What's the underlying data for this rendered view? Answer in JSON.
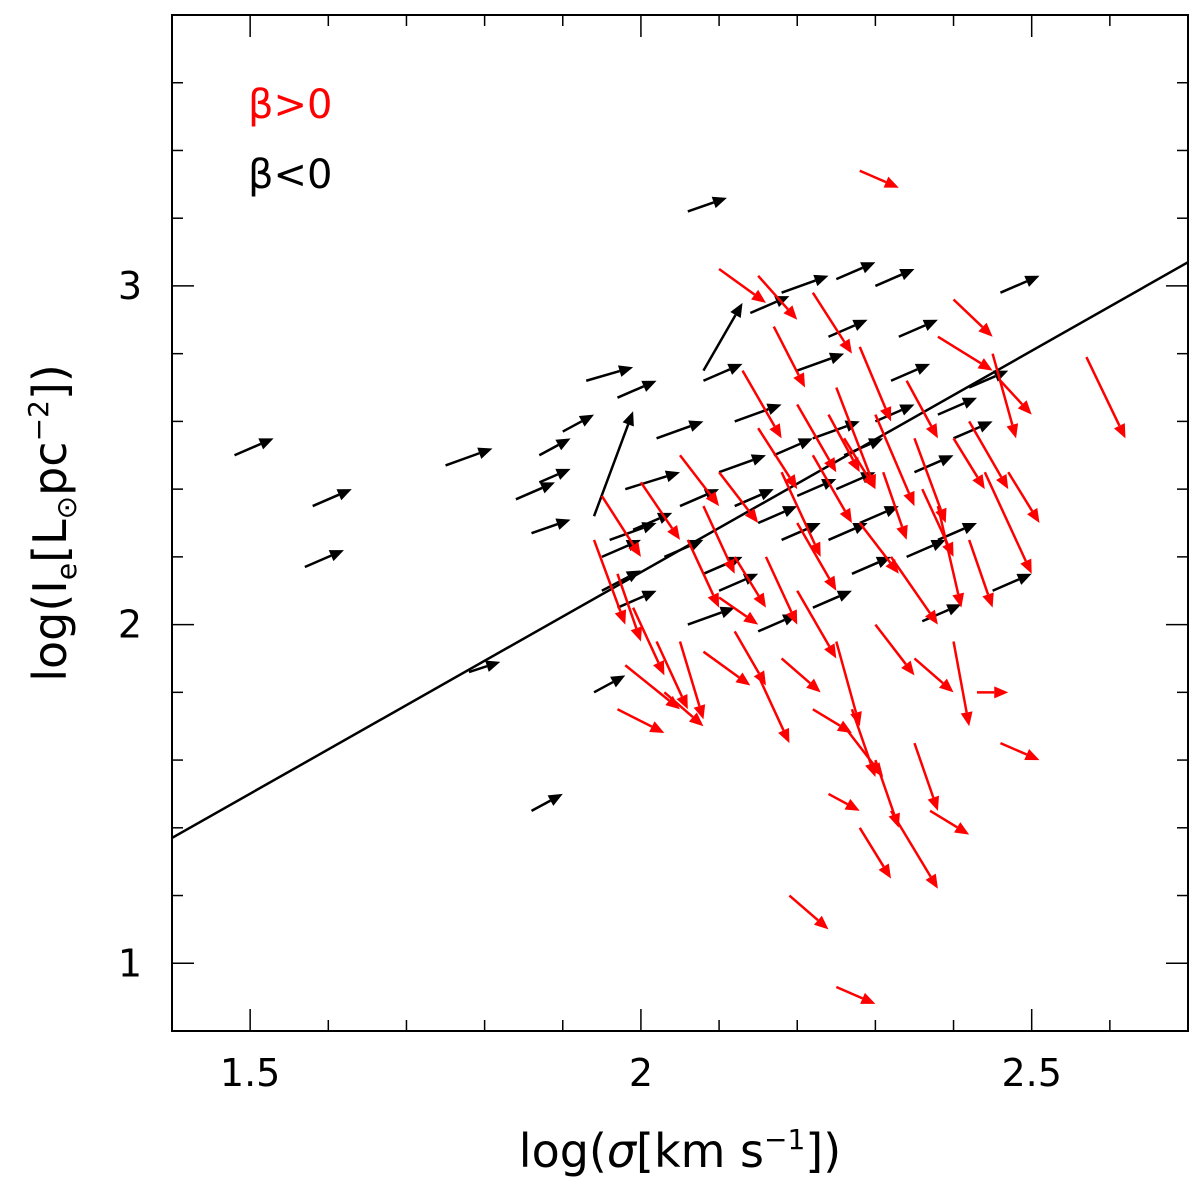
{
  "chart_data": {
    "type": "scatter",
    "title": "",
    "xlabel": {
      "pre": "log(",
      "sigma": "σ",
      "mid": "[km s",
      "sup": "−1",
      "post": "])"
    },
    "ylabel": {
      "pre": "log(I",
      "sub_e": "e",
      "mid1": "[L",
      "sun": "⊙",
      "mid2": "pc",
      "sup": "−2",
      "post": "])"
    },
    "xlim": [
      1.4,
      2.7
    ],
    "ylim": [
      0.8,
      3.8
    ],
    "x_ticks": [
      1.5,
      2.0,
      2.5
    ],
    "x_tick_labels": [
      "1.5",
      "2",
      "2.5"
    ],
    "y_ticks": [
      1,
      2,
      3
    ],
    "y_tick_labels": [
      "1",
      "2",
      "3"
    ],
    "x_minor_step": 0.1,
    "y_minor_step": 0.2,
    "legend": [
      {
        "label": "β>0",
        "color": "#ff0000"
      },
      {
        "label": "β<0",
        "color": "#000000"
      }
    ],
    "fit_line": {
      "x": [
        1.4,
        2.7
      ],
      "y": [
        1.37,
        3.07
      ]
    },
    "series": [
      {
        "name": "β<0",
        "color": "#000000",
        "arrows": [
          [
            1.48,
            2.5,
            1.53,
            2.55
          ],
          [
            1.57,
            2.17,
            1.62,
            2.22
          ],
          [
            1.58,
            2.35,
            1.63,
            2.4
          ],
          [
            1.75,
            2.47,
            1.81,
            2.52
          ],
          [
            1.78,
            1.86,
            1.82,
            1.89
          ],
          [
            1.87,
            2.5,
            1.91,
            2.55
          ],
          [
            1.87,
            2.42,
            1.91,
            2.46
          ],
          [
            1.86,
            2.27,
            1.91,
            2.31
          ],
          [
            1.84,
            2.37,
            1.89,
            2.42
          ],
          [
            1.86,
            1.45,
            1.9,
            1.5
          ],
          [
            1.9,
            2.57,
            1.94,
            2.62
          ],
          [
            1.93,
            2.72,
            1.99,
            2.76
          ],
          [
            1.97,
            2.67,
            2.02,
            2.72
          ],
          [
            1.95,
            2.1,
            2.0,
            2.16
          ],
          [
            1.94,
            1.8,
            1.98,
            1.85
          ],
          [
            1.97,
            2.05,
            2.02,
            2.1
          ],
          [
            1.96,
            2.25,
            2.02,
            2.3
          ],
          [
            1.95,
            2.2,
            2.0,
            2.25
          ],
          [
            1.98,
            2.4,
            2.05,
            2.45
          ],
          [
            2.02,
            2.55,
            2.08,
            2.6
          ],
          [
            2.05,
            2.35,
            2.1,
            2.4
          ],
          [
            2.08,
            2.15,
            2.13,
            2.2
          ],
          [
            2.06,
            2.0,
            2.12,
            2.05
          ],
          [
            2.1,
            2.45,
            2.16,
            2.5
          ],
          [
            2.15,
            2.3,
            2.2,
            2.35
          ],
          [
            2.12,
            2.6,
            2.18,
            2.65
          ],
          [
            2.14,
            2.92,
            2.19,
            2.97
          ],
          [
            2.18,
            2.98,
            2.24,
            3.03
          ],
          [
            2.2,
            2.75,
            2.26,
            2.8
          ],
          [
            2.22,
            2.55,
            2.28,
            2.6
          ],
          [
            2.18,
            2.25,
            2.23,
            2.3
          ],
          [
            2.25,
            2.4,
            2.3,
            2.45
          ],
          [
            2.27,
            2.15,
            2.32,
            2.2
          ],
          [
            2.22,
            2.05,
            2.27,
            2.1
          ],
          [
            2.3,
            2.6,
            2.35,
            2.65
          ],
          [
            2.33,
            2.85,
            2.38,
            2.9
          ],
          [
            2.35,
            2.45,
            2.4,
            2.5
          ],
          [
            2.38,
            2.25,
            2.43,
            2.3
          ],
          [
            2.4,
            2.55,
            2.45,
            2.6
          ],
          [
            2.42,
            2.7,
            2.47,
            2.75
          ],
          [
            2.45,
            2.1,
            2.5,
            2.15
          ],
          [
            2.46,
            2.98,
            2.51,
            3.03
          ],
          [
            2.3,
            3.0,
            2.35,
            3.05
          ],
          [
            2.25,
            3.02,
            2.3,
            3.07
          ],
          [
            2.06,
            3.22,
            2.11,
            3.26
          ],
          [
            2.36,
            2.01,
            2.41,
            2.06
          ],
          [
            2.15,
            1.98,
            2.2,
            2.03
          ],
          [
            2.28,
            2.3,
            2.33,
            2.35
          ],
          [
            2.12,
            2.35,
            2.17,
            2.4
          ],
          [
            2.32,
            2.72,
            2.37,
            2.77
          ],
          [
            2.08,
            2.72,
            2.13,
            2.77
          ],
          [
            2.17,
            2.5,
            2.22,
            2.55
          ],
          [
            1.99,
            2.28,
            2.04,
            2.33
          ],
          [
            2.03,
            2.2,
            2.08,
            2.25
          ],
          [
            2.26,
            2.5,
            2.31,
            2.55
          ],
          [
            2.38,
            2.62,
            2.43,
            2.67
          ],
          [
            2.1,
            2.1,
            2.15,
            2.15
          ],
          [
            2.24,
            2.25,
            2.29,
            2.3
          ],
          [
            2.2,
            2.38,
            2.25,
            2.43
          ],
          [
            2.34,
            2.2,
            2.39,
            2.25
          ],
          [
            1.94,
            2.32,
            1.99,
            2.63
          ],
          [
            2.08,
            2.75,
            2.13,
            2.95
          ],
          [
            2.24,
            2.85,
            2.29,
            2.9
          ]
        ]
      },
      {
        "name": "β>0",
        "color": "#ff0000",
        "arrows": [
          [
            2.28,
            3.34,
            2.33,
            3.29
          ],
          [
            2.1,
            3.05,
            2.16,
            2.95
          ],
          [
            2.15,
            3.03,
            2.2,
            2.9
          ],
          [
            2.22,
            2.98,
            2.27,
            2.8
          ],
          [
            2.4,
            2.96,
            2.45,
            2.85
          ],
          [
            2.38,
            2.85,
            2.45,
            2.75
          ],
          [
            2.46,
            2.72,
            2.5,
            2.62
          ],
          [
            2.42,
            2.6,
            2.47,
            2.4
          ],
          [
            2.45,
            2.8,
            2.48,
            2.55
          ],
          [
            2.57,
            2.79,
            2.62,
            2.55
          ],
          [
            2.44,
            2.45,
            2.5,
            2.15
          ],
          [
            2.38,
            2.35,
            2.41,
            2.05
          ],
          [
            2.35,
            2.55,
            2.39,
            2.3
          ],
          [
            2.3,
            2.62,
            2.35,
            2.35
          ],
          [
            2.25,
            2.7,
            2.3,
            2.4
          ],
          [
            2.2,
            2.65,
            2.25,
            2.45
          ],
          [
            2.15,
            2.58,
            2.2,
            2.4
          ],
          [
            2.1,
            2.45,
            2.15,
            2.3
          ],
          [
            2.05,
            2.5,
            2.1,
            2.35
          ],
          [
            2.0,
            2.42,
            2.05,
            2.25
          ],
          [
            1.95,
            2.38,
            2.0,
            2.2
          ],
          [
            1.94,
            2.25,
            1.98,
            2.0
          ],
          [
            1.97,
            2.15,
            2.0,
            1.95
          ],
          [
            1.99,
            2.05,
            2.03,
            1.85
          ],
          [
            2.02,
            1.95,
            2.06,
            1.75
          ],
          [
            1.98,
            1.88,
            2.05,
            1.75
          ],
          [
            1.97,
            1.75,
            2.03,
            1.68
          ],
          [
            2.03,
            1.8,
            2.08,
            1.7
          ],
          [
            2.05,
            1.95,
            2.08,
            1.72
          ],
          [
            2.08,
            1.92,
            2.14,
            1.82
          ],
          [
            2.1,
            2.08,
            2.15,
            2.0
          ],
          [
            2.12,
            1.98,
            2.16,
            1.82
          ],
          [
            2.15,
            1.85,
            2.19,
            1.65
          ],
          [
            2.18,
            1.9,
            2.23,
            1.8
          ],
          [
            2.22,
            1.75,
            2.27,
            1.68
          ],
          [
            2.2,
            2.1,
            2.25,
            1.9
          ],
          [
            2.25,
            1.95,
            2.28,
            1.7
          ],
          [
            2.27,
            1.75,
            2.3,
            1.55
          ],
          [
            2.24,
            1.5,
            2.28,
            1.45
          ],
          [
            2.26,
            1.7,
            2.31,
            1.55
          ],
          [
            2.3,
            1.6,
            2.33,
            1.4
          ],
          [
            2.28,
            1.4,
            2.32,
            1.25
          ],
          [
            2.32,
            1.45,
            2.38,
            1.22
          ],
          [
            2.35,
            1.65,
            2.38,
            1.45
          ],
          [
            2.37,
            1.45,
            2.42,
            1.38
          ],
          [
            2.4,
            1.95,
            2.42,
            1.7
          ],
          [
            2.43,
            1.8,
            2.47,
            1.8
          ],
          [
            2.46,
            1.65,
            2.51,
            1.6
          ],
          [
            2.35,
            1.9,
            2.4,
            1.8
          ],
          [
            2.3,
            2.0,
            2.35,
            1.85
          ],
          [
            2.32,
            2.2,
            2.38,
            2.0
          ],
          [
            2.28,
            2.3,
            2.33,
            2.15
          ],
          [
            2.2,
            2.3,
            2.25,
            2.1
          ],
          [
            2.16,
            2.2,
            2.2,
            2.0
          ],
          [
            2.12,
            2.2,
            2.16,
            2.05
          ],
          [
            2.22,
            2.5,
            2.27,
            2.3
          ],
          [
            2.26,
            2.55,
            2.3,
            2.4
          ],
          [
            2.18,
            2.45,
            2.23,
            2.2
          ],
          [
            2.08,
            2.35,
            2.12,
            2.15
          ],
          [
            2.06,
            2.25,
            2.1,
            2.05
          ],
          [
            2.36,
            2.4,
            2.4,
            2.2
          ],
          [
            2.4,
            2.55,
            2.44,
            2.4
          ],
          [
            2.42,
            2.25,
            2.45,
            2.05
          ],
          [
            2.47,
            2.45,
            2.51,
            2.3
          ],
          [
            2.19,
            1.2,
            2.24,
            1.1
          ],
          [
            2.25,
            0.93,
            2.3,
            0.88
          ],
          [
            2.34,
            2.72,
            2.38,
            2.55
          ],
          [
            2.28,
            2.82,
            2.32,
            2.6
          ],
          [
            2.13,
            2.75,
            2.18,
            2.55
          ],
          [
            2.17,
            2.88,
            2.21,
            2.7
          ],
          [
            2.24,
            2.62,
            2.28,
            2.45
          ],
          [
            2.31,
            2.45,
            2.34,
            2.25
          ]
        ]
      }
    ]
  }
}
